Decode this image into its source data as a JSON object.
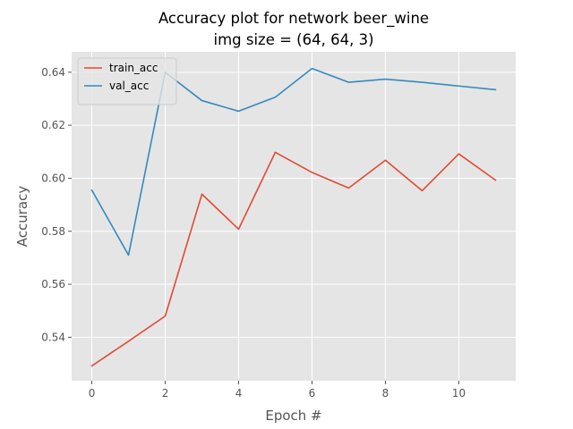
{
  "chart_data": {
    "type": "line",
    "title": "Accuracy plot for network beer_wine",
    "subtitle": "img size = (64, 64, 3)",
    "xlabel": "Epoch #",
    "ylabel": "Accuracy",
    "x": [
      0,
      1,
      2,
      3,
      4,
      5,
      6,
      7,
      8,
      9,
      10,
      11
    ],
    "xticks": [
      0,
      2,
      4,
      6,
      8,
      10
    ],
    "yticks": [
      0.54,
      0.56,
      0.58,
      0.6,
      0.62,
      0.64
    ],
    "ytick_labels": [
      "0.54",
      "0.56",
      "0.58",
      "0.60",
      "0.62",
      "0.64"
    ],
    "xlim": [
      -0.55,
      11.55
    ],
    "ylim": [
      0.5236,
      0.6477
    ],
    "grid": true,
    "legend_position": "top-left",
    "series": [
      {
        "name": "train_acc",
        "color": "#E24A33",
        "values": [
          0.5292,
          0.5385,
          0.548,
          0.594,
          0.5808,
          0.6098,
          0.6022,
          0.5963,
          0.6068,
          0.5953,
          0.6092,
          0.5993
        ]
      },
      {
        "name": "val_acc",
        "color": "#348ABD",
        "values": [
          0.5955,
          0.571,
          0.64,
          0.6293,
          0.6253,
          0.6306,
          0.6414,
          0.6362,
          0.6374,
          0.6362,
          0.6348,
          0.6334
        ]
      }
    ]
  }
}
